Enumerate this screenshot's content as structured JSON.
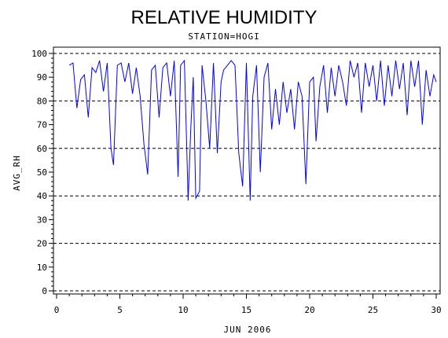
{
  "chart_data": {
    "type": "line",
    "title": "RELATIVE HUMIDITY",
    "subtitle": "STATION=HOGI",
    "xlabel": "JUN 2006",
    "ylabel": "AVG_RH",
    "xlim": [
      0,
      30
    ],
    "ylim": [
      0,
      100
    ],
    "x_ticks": [
      0,
      5,
      10,
      15,
      20,
      25,
      30
    ],
    "y_ticks": [
      0,
      10,
      20,
      30,
      40,
      50,
      60,
      70,
      80,
      90,
      100
    ],
    "reference_lines": [
      0,
      20,
      40,
      60,
      80,
      100
    ],
    "line_color": "#0000ff",
    "series": [
      {
        "x": [
          1.0,
          1.3,
          1.6,
          1.9,
          2.2,
          2.5,
          2.8,
          3.1,
          3.4,
          3.7,
          4.0,
          4.3,
          4.5,
          4.8,
          5.1,
          5.4,
          5.7,
          6.0,
          6.3,
          6.6,
          6.9,
          7.2,
          7.5,
          7.8,
          8.1,
          8.4,
          8.7,
          9.0,
          9.3,
          9.6,
          9.8,
          10.1,
          10.4,
          10.6,
          10.8,
          11.0,
          11.3,
          11.5,
          11.8,
          12.1,
          12.4,
          12.7,
          13.0,
          13.2,
          13.5,
          13.8,
          14.1,
          14.4,
          14.7,
          15.0,
          15.3,
          15.5,
          15.8,
          16.1,
          16.4,
          16.7,
          17.0,
          17.3,
          17.6,
          17.9,
          18.2,
          18.5,
          18.8,
          19.1,
          19.4,
          19.7,
          20.0,
          20.3,
          20.5,
          20.8,
          21.1,
          21.4,
          21.7,
          22.0,
          22.3,
          22.6,
          22.9,
          23.2,
          23.5,
          23.8,
          24.1,
          24.4,
          24.7,
          25.0,
          25.3,
          25.6,
          25.9,
          26.2,
          26.5,
          26.8,
          27.1,
          27.4,
          27.7,
          28.0,
          28.3,
          28.6,
          28.9,
          29.2,
          29.5,
          29.8,
          30.0
        ],
        "values": [
          95,
          96,
          77,
          89,
          91,
          73,
          94,
          92,
          97,
          84,
          96,
          60,
          53,
          95,
          96,
          88,
          96,
          83,
          94,
          82,
          62,
          49,
          93,
          95,
          73,
          94,
          96,
          82,
          97,
          48,
          95,
          97,
          38,
          68,
          90,
          39,
          42,
          95,
          80,
          60,
          96,
          58,
          88,
          93,
          95,
          97,
          95,
          58,
          44,
          96,
          38,
          82,
          95,
          50,
          90,
          96,
          68,
          85,
          70,
          88,
          75,
          85,
          68,
          88,
          82,
          45,
          88,
          90,
          63,
          86,
          95,
          75,
          94,
          82,
          95,
          88,
          78,
          97,
          90,
          96,
          75,
          96,
          86,
          95,
          80,
          97,
          78,
          95,
          82,
          97,
          85,
          96,
          74,
          97,
          86,
          97,
          70,
          93,
          82,
          91,
          88
        ]
      }
    ]
  }
}
